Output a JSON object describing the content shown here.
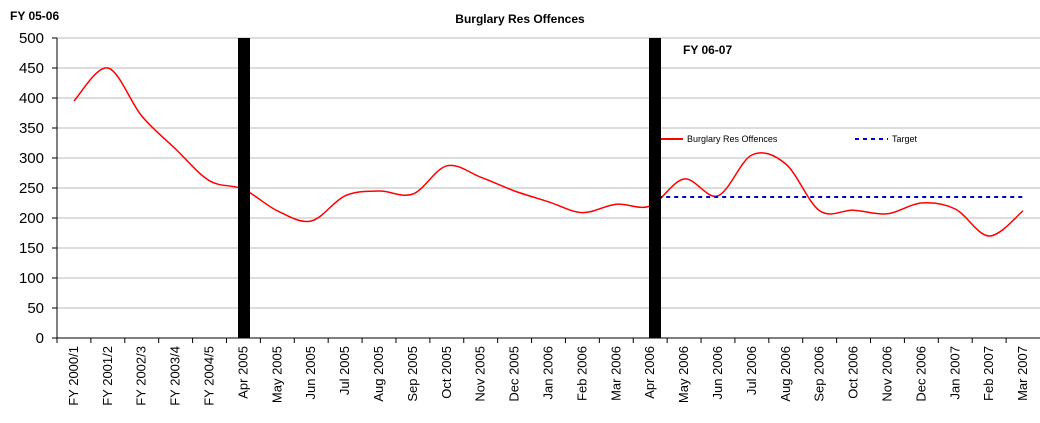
{
  "chart_data": {
    "type": "line",
    "title": "Burglary Res Offences",
    "annotations": [
      "FY 05-06",
      "FY 06-07"
    ],
    "categories": [
      "FY 2000/1",
      "FY 2001/2",
      "FY 2002/3",
      "FY 2003/4",
      "FY 2004/5",
      "Apr 2005",
      "May 2005",
      "Jun 2005",
      "Jul 2005",
      "Aug 2005",
      "Sep 2005",
      "Oct 2005",
      "Nov 2005",
      "Dec 2005",
      "Jan 2006",
      "Feb 2006",
      "Mar 2006",
      "Apr 2006",
      "May 2006",
      "Jun 2006",
      "Jul 2006",
      "Aug 2006",
      "Sep 2006",
      "Oct 2006",
      "Nov 2006",
      "Dec 2006",
      "Jan 2007",
      "Feb 2007",
      "Mar 2007"
    ],
    "series": [
      {
        "name": "Burglary Res Offences",
        "color": "#ff0000",
        "dash": false,
        "values": [
          395,
          450,
          370,
          315,
          262,
          248,
          212,
          195,
          237,
          245,
          240,
          287,
          268,
          245,
          227,
          209,
          223,
          220,
          265,
          237,
          305,
          290,
          212,
          213,
          207,
          225,
          215,
          170,
          212
        ]
      },
      {
        "name": "Target",
        "color": "#0000cc",
        "dash": true,
        "values": [
          null,
          null,
          null,
          null,
          null,
          null,
          null,
          null,
          null,
          null,
          null,
          null,
          null,
          null,
          null,
          null,
          null,
          235,
          235,
          235,
          235,
          235,
          235,
          235,
          235,
          235,
          235,
          235,
          235
        ]
      }
    ],
    "ylim": [
      0,
      500
    ],
    "yticks": [
      0,
      50,
      100,
      150,
      200,
      250,
      300,
      350,
      400,
      450,
      500
    ],
    "grid": true
  }
}
